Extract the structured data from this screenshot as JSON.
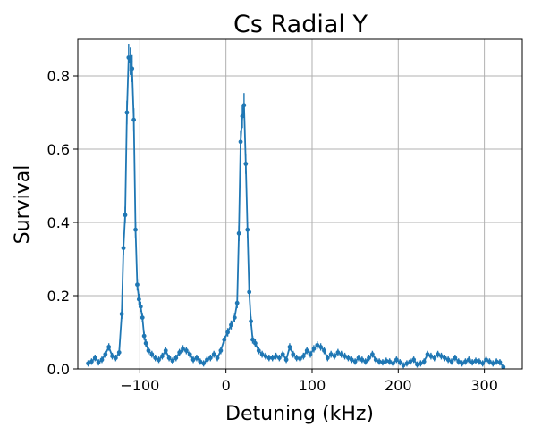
{
  "chart_data": {
    "type": "line",
    "title": "Cs Radial Y",
    "xlabel": "Detuning (kHz)",
    "ylabel": "Survival",
    "xlim": [
      -172,
      344
    ],
    "ylim": [
      0,
      0.9
    ],
    "xticks": [
      -100,
      0,
      100,
      200,
      300
    ],
    "yticks": [
      0.0,
      0.2,
      0.4,
      0.6,
      0.8
    ],
    "xtick_labels": [
      "−100",
      "0",
      "100",
      "200",
      "300"
    ],
    "ytick_labels": [
      "0.0",
      "0.2",
      "0.4",
      "0.6",
      "0.8"
    ],
    "grid": true,
    "series_color": "#1f77b4",
    "peaks": [
      {
        "center": -108,
        "height": 0.84,
        "width": 6.5
      },
      {
        "center": 20,
        "height": 0.7,
        "width": 5.5
      }
    ],
    "x": [
      -160,
      -156,
      -152,
      -148,
      -144,
      -140,
      -136,
      -132,
      -128,
      -124,
      -121,
      -119,
      -117,
      -115,
      -113,
      -111,
      -109,
      -107,
      -105,
      -103,
      -101,
      -99,
      -97,
      -95,
      -93,
      -90,
      -86,
      -82,
      -78,
      -74,
      -70,
      -66,
      -62,
      -58,
      -54,
      -50,
      -46,
      -42,
      -38,
      -34,
      -30,
      -26,
      -22,
      -18,
      -14,
      -10,
      -6,
      -2,
      2,
      6,
      10,
      13,
      15,
      17,
      19,
      21,
      23,
      25,
      27,
      29,
      31,
      34,
      38,
      42,
      46,
      50,
      54,
      58,
      62,
      66,
      70,
      74,
      78,
      82,
      86,
      90,
      94,
      98,
      102,
      106,
      110,
      114,
      118,
      122,
      126,
      130,
      134,
      138,
      142,
      146,
      150,
      154,
      158,
      162,
      166,
      170,
      174,
      178,
      182,
      186,
      190,
      194,
      198,
      202,
      206,
      210,
      214,
      218,
      222,
      226,
      230,
      234,
      238,
      242,
      246,
      250,
      254,
      258,
      262,
      266,
      270,
      274,
      278,
      282,
      286,
      290,
      294,
      298,
      302,
      306,
      310,
      314,
      318,
      322
    ],
    "values": [
      0.015,
      0.02,
      0.03,
      0.018,
      0.025,
      0.04,
      0.06,
      0.035,
      0.03,
      0.045,
      0.15,
      0.33,
      0.42,
      0.7,
      0.85,
      0.84,
      0.82,
      0.68,
      0.38,
      0.23,
      0.19,
      0.17,
      0.14,
      0.09,
      0.07,
      0.05,
      0.04,
      0.03,
      0.025,
      0.035,
      0.05,
      0.03,
      0.022,
      0.03,
      0.045,
      0.055,
      0.05,
      0.04,
      0.025,
      0.03,
      0.02,
      0.015,
      0.025,
      0.03,
      0.04,
      0.03,
      0.05,
      0.08,
      0.1,
      0.12,
      0.14,
      0.18,
      0.37,
      0.62,
      0.69,
      0.72,
      0.56,
      0.38,
      0.21,
      0.13,
      0.08,
      0.07,
      0.05,
      0.04,
      0.035,
      0.03,
      0.03,
      0.035,
      0.03,
      0.04,
      0.025,
      0.06,
      0.04,
      0.03,
      0.028,
      0.035,
      0.05,
      0.04,
      0.055,
      0.065,
      0.06,
      0.05,
      0.03,
      0.04,
      0.035,
      0.045,
      0.04,
      0.035,
      0.03,
      0.025,
      0.02,
      0.03,
      0.025,
      0.02,
      0.03,
      0.04,
      0.025,
      0.02,
      0.018,
      0.022,
      0.02,
      0.015,
      0.025,
      0.018,
      0.01,
      0.015,
      0.02,
      0.025,
      0.012,
      0.015,
      0.02,
      0.04,
      0.035,
      0.03,
      0.04,
      0.035,
      0.03,
      0.025,
      0.02,
      0.03,
      0.02,
      0.015,
      0.02,
      0.025,
      0.018,
      0.022,
      0.02,
      0.015,
      0.025,
      0.02,
      0.015,
      0.02,
      0.018,
      0.005
    ]
  }
}
